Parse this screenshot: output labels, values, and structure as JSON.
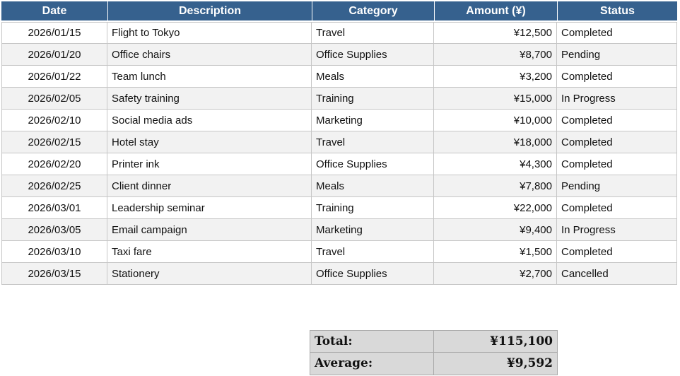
{
  "colors": {
    "header_bg": "#36618E",
    "header_text": "#FFFFFF",
    "row_bg": "#FFFFFF",
    "row_alt_bg": "#F2F2F2",
    "grid_border": "#C6C6C6",
    "summary_bg": "#D9D9D9",
    "summary_border": "#A9A9A9"
  },
  "expense_table": {
    "columns": [
      "Date",
      "Description",
      "Category",
      "Amount (¥)",
      "Status"
    ],
    "rows": [
      [
        "2026/01/15",
        "Flight to Tokyo",
        "Travel",
        "¥12,500",
        "Completed"
      ],
      [
        "2026/01/20",
        "Office chairs",
        "Office Supplies",
        "¥8,700",
        "Pending"
      ],
      [
        "2026/01/22",
        "Team lunch",
        "Meals",
        "¥3,200",
        "Completed"
      ],
      [
        "2026/02/05",
        "Safety training",
        "Training",
        "¥15,000",
        "In Progress"
      ],
      [
        "2026/02/10",
        "Social media ads",
        "Marketing",
        "¥10,000",
        "Completed"
      ],
      [
        "2026/02/15",
        "Hotel stay",
        "Travel",
        "¥18,000",
        "Completed"
      ],
      [
        "2026/02/20",
        "Printer ink",
        "Office Supplies",
        "¥4,300",
        "Completed"
      ],
      [
        "2026/02/25",
        "Client dinner",
        "Meals",
        "¥7,800",
        "Pending"
      ],
      [
        "2026/03/01",
        "Leadership seminar",
        "Training",
        "¥22,000",
        "Completed"
      ],
      [
        "2026/03/05",
        "Email campaign",
        "Marketing",
        "¥9,400",
        "In Progress"
      ],
      [
        "2026/03/10",
        "Taxi fare",
        "Travel",
        "¥1,500",
        "Completed"
      ],
      [
        "2026/03/15",
        "Stationery",
        "Office Supplies",
        "¥2,700",
        "Cancelled"
      ]
    ]
  },
  "summary": {
    "total": {
      "label": "Total:",
      "value": "¥115,100"
    },
    "average": {
      "label": "Average:",
      "value": "¥9,592"
    }
  }
}
